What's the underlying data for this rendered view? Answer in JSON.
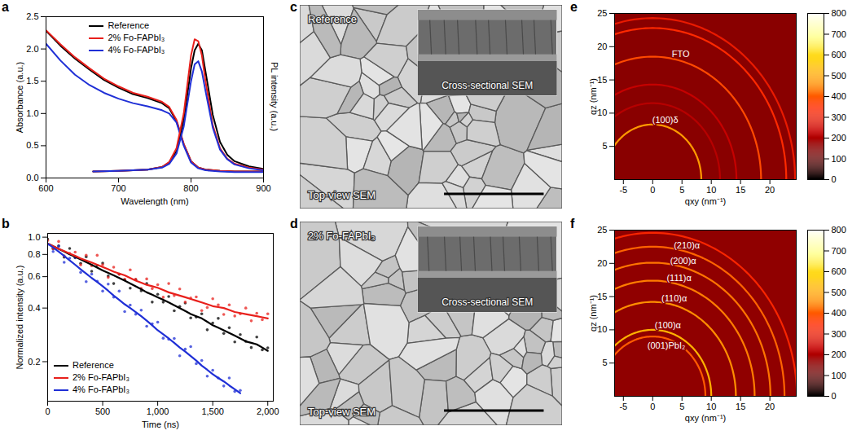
{
  "chart_data": [
    {
      "panel": "a",
      "type": "line",
      "xlabel": "Wavelength (nm)",
      "ylabel": "Absorbance (a.u.)",
      "y2label": "PL intensity (a.u.)",
      "xlim": [
        600,
        900
      ],
      "xticks": [
        600,
        700,
        800,
        900
      ],
      "ylim": [
        0,
        2.5
      ],
      "yticks": [
        {
          "value": 0,
          "label": "0.0"
        },
        {
          "value": 0.5,
          "label": "0.5"
        },
        {
          "value": 1,
          "label": "1.0"
        },
        {
          "value": 1.5,
          "label": "1.5"
        },
        {
          "value": 2,
          "label": "2.0"
        },
        {
          "value": 2.5,
          "label": "2.5"
        }
      ],
      "y2lim": [
        0,
        2.5
      ],
      "y2ticks": [],
      "legend": "top",
      "series": [
        {
          "name": "Reference",
          "color": "#000000",
          "x": [
            600,
            620,
            640,
            660,
            680,
            700,
            720,
            740,
            760,
            770,
            780,
            790,
            800,
            810,
            820,
            840,
            860,
            880,
            900
          ],
          "values": [
            2.28,
            2.05,
            1.85,
            1.68,
            1.52,
            1.4,
            1.3,
            1.24,
            1.16,
            1.08,
            0.88,
            0.52,
            0.26,
            0.16,
            0.13,
            0.11,
            0.1,
            0.1,
            0.1
          ]
        },
        {
          "name": "2% Fo-FAPbI₃",
          "color": "#e8201c",
          "x": [
            600,
            620,
            640,
            660,
            680,
            700,
            720,
            740,
            760,
            770,
            780,
            790,
            800,
            810,
            820,
            840,
            860,
            880,
            900
          ],
          "values": [
            2.29,
            2.07,
            1.87,
            1.7,
            1.54,
            1.42,
            1.32,
            1.26,
            1.18,
            1.1,
            0.9,
            0.53,
            0.26,
            0.16,
            0.13,
            0.11,
            0.1,
            0.1,
            0.1
          ]
        },
        {
          "name": "4% Fo-FAPbI₃",
          "color": "#1f2fd6",
          "x": [
            600,
            620,
            640,
            660,
            680,
            700,
            720,
            740,
            760,
            770,
            780,
            790,
            800,
            810,
            820,
            840,
            860,
            880,
            900
          ],
          "values": [
            2.08,
            1.82,
            1.6,
            1.44,
            1.32,
            1.23,
            1.16,
            1.11,
            1.05,
            1.0,
            0.86,
            0.5,
            0.24,
            0.15,
            0.12,
            0.1,
            0.09,
            0.09,
            0.09
          ]
        },
        {
          "name": "Reference",
          "color": "#000000",
          "axis": "y2",
          "x": [
            665,
            700,
            740,
            760,
            770,
            780,
            790,
            795,
            800,
            805,
            810,
            815,
            820,
            830,
            840,
            850,
            860,
            880,
            900
          ],
          "values": [
            0.1,
            0.11,
            0.13,
            0.17,
            0.24,
            0.42,
            0.9,
            1.3,
            1.7,
            1.98,
            2.08,
            1.98,
            1.65,
            0.98,
            0.56,
            0.36,
            0.26,
            0.18,
            0.14
          ]
        },
        {
          "name": "2% Fo-FAPbI₃",
          "color": "#e8201c",
          "axis": "y2",
          "x": [
            665,
            700,
            740,
            760,
            770,
            780,
            790,
            795,
            800,
            805,
            810,
            815,
            820,
            830,
            840,
            850,
            860,
            880,
            900
          ],
          "values": [
            0.1,
            0.11,
            0.13,
            0.17,
            0.25,
            0.46,
            1.0,
            1.45,
            1.9,
            2.15,
            2.12,
            1.9,
            1.5,
            0.82,
            0.46,
            0.3,
            0.22,
            0.16,
            0.13
          ]
        },
        {
          "name": "4% Fo-FAPbI₃",
          "color": "#1f2fd6",
          "axis": "y2",
          "x": [
            665,
            700,
            740,
            760,
            770,
            780,
            790,
            795,
            800,
            805,
            810,
            815,
            820,
            830,
            840,
            850,
            860,
            880,
            900
          ],
          "values": [
            0.1,
            0.11,
            0.13,
            0.16,
            0.22,
            0.38,
            0.8,
            1.15,
            1.5,
            1.76,
            1.81,
            1.65,
            1.35,
            0.78,
            0.44,
            0.29,
            0.21,
            0.15,
            0.12
          ]
        }
      ]
    },
    {
      "panel": "b",
      "type": "scatter",
      "xlabel": "Time (ns)",
      "ylabel": "Normalized intensity (a.u.)",
      "xlim": [
        0,
        2050
      ],
      "xticks": [
        0,
        500,
        {
          "value": 1000,
          "label": "1,000"
        },
        {
          "value": 1500,
          "label": "1,500"
        },
        {
          "value": 2000,
          "label": "2,000"
        }
      ],
      "ylim": [
        0.12,
        1.05
      ],
      "yticks": [
        0.2,
        0.4,
        0.6,
        0.8,
        {
          "value": 1,
          "label": "1.0"
        }
      ],
      "log": "y",
      "legend": "bottom-left",
      "series": [
        {
          "name": "Reference",
          "color": "#000000",
          "x": [
            0,
            50,
            100,
            150,
            200,
            250,
            300,
            350,
            400,
            450,
            500,
            550,
            600,
            650,
            700,
            750,
            800,
            850,
            900,
            950,
            1000,
            1050,
            1100,
            1150,
            1200,
            1250,
            1300,
            1350,
            1400,
            1450,
            1500,
            1550,
            1600,
            1650,
            1700,
            1750,
            1800,
            1850,
            1900,
            1950,
            2000
          ],
          "values": [
            0.975,
            0.863,
            0.894,
            0.772,
            0.864,
            0.767,
            0.713,
            0.776,
            0.644,
            0.695,
            0.715,
            0.605,
            0.549,
            0.62,
            0.576,
            0.517,
            0.578,
            0.5,
            0.549,
            0.432,
            0.478,
            0.432,
            0.464,
            0.386,
            0.408,
            0.427,
            0.352,
            0.356,
            0.371,
            0.302,
            0.33,
            0.35,
            0.288,
            0.31,
            0.258,
            0.284,
            0.26,
            0.24,
            0.275,
            0.233,
            0.239
          ],
          "fit": [
            0.92,
            0.89,
            0.86,
            0.83,
            0.8,
            0.775,
            0.75,
            0.725,
            0.7,
            0.675,
            0.65,
            0.63,
            0.61,
            0.59,
            0.57,
            0.55,
            0.53,
            0.51,
            0.49,
            0.475,
            0.46,
            0.445,
            0.43,
            0.415,
            0.4,
            0.385,
            0.37,
            0.36,
            0.35,
            0.335,
            0.32,
            0.31,
            0.3,
            0.29,
            0.28,
            0.27,
            0.26,
            0.255,
            0.25,
            0.24,
            0.23
          ]
        },
        {
          "name": "2% Fo-FAPbI₃",
          "color": "#e8201c",
          "x": [
            0,
            50,
            100,
            150,
            200,
            250,
            300,
            350,
            400,
            450,
            500,
            550,
            600,
            650,
            700,
            750,
            800,
            850,
            900,
            950,
            1000,
            1050,
            1100,
            1150,
            1200,
            1250,
            1300,
            1350,
            1400,
            1450,
            1500,
            1550,
            1600,
            1650,
            1700,
            1750,
            1800,
            1850,
            1900,
            1950,
            2000
          ],
          "values": [
            0.957,
            0.863,
            0.946,
            0.785,
            0.81,
            0.824,
            0.699,
            0.792,
            0.691,
            0.791,
            0.7,
            0.594,
            0.678,
            0.619,
            0.58,
            0.655,
            0.581,
            0.516,
            0.583,
            0.514,
            0.541,
            0.46,
            0.549,
            0.47,
            0.512,
            0.432,
            0.455,
            0.462,
            0.387,
            0.403,
            0.451,
            0.417,
            0.368,
            0.417,
            0.361,
            0.371,
            0.4,
            0.339,
            0.374,
            0.344,
            0.371
          ],
          "fit": [
            0.92,
            0.89,
            0.86,
            0.835,
            0.81,
            0.785,
            0.76,
            0.74,
            0.72,
            0.7,
            0.68,
            0.66,
            0.64,
            0.625,
            0.61,
            0.59,
            0.57,
            0.555,
            0.54,
            0.53,
            0.52,
            0.505,
            0.49,
            0.48,
            0.47,
            0.46,
            0.45,
            0.44,
            0.43,
            0.42,
            0.41,
            0.405,
            0.4,
            0.39,
            0.38,
            0.375,
            0.37,
            0.365,
            0.36,
            0.355,
            0.35
          ]
        },
        {
          "name": "4% Fo-FAPbI₃",
          "color": "#1f2fd6",
          "x": [
            0,
            50,
            100,
            150,
            200,
            250,
            300,
            350,
            400,
            450,
            500,
            550,
            600,
            650,
            700,
            750,
            800,
            850,
            900,
            950,
            1000,
            1050,
            1100,
            1150,
            1200,
            1250,
            1300,
            1350,
            1400,
            1450,
            1500,
            1550,
            1600,
            1650,
            1700,
            1750
          ],
          "values": [
            0.911,
            0.831,
            0.888,
            0.722,
            0.762,
            0.77,
            0.634,
            0.563,
            0.62,
            0.566,
            0.498,
            0.545,
            0.461,
            0.498,
            0.382,
            0.416,
            0.369,
            0.389,
            0.316,
            0.326,
            0.333,
            0.271,
            0.267,
            0.27,
            0.216,
            0.235,
            0.243,
            0.195,
            0.203,
            0.166,
            0.179,
            0.162,
            0.146,
            0.162,
            0.136,
            0.138
          ],
          "fit": [
            0.92,
            0.875,
            0.83,
            0.785,
            0.74,
            0.7,
            0.66,
            0.625,
            0.59,
            0.56,
            0.53,
            0.5,
            0.47,
            0.445,
            0.42,
            0.4,
            0.38,
            0.36,
            0.34,
            0.32,
            0.3,
            0.285,
            0.27,
            0.255,
            0.24,
            0.228,
            0.215,
            0.203,
            0.19,
            0.18,
            0.17,
            0.162,
            0.155,
            0.147,
            0.14,
            0.133
          ]
        }
      ]
    },
    {
      "panel": "c",
      "type": "image",
      "title": "Reference",
      "inset_label": "Cross-sectional SEM",
      "label": "Top-view SEM"
    },
    {
      "panel": "d",
      "type": "image",
      "title": "2% Fo-FAPbI₃",
      "inset_label": "Cross-sectional SEM",
      "label": "Top-view SEM"
    },
    {
      "panel": "e",
      "type": "heatmap",
      "xlabel": "qxy (nm⁻¹)",
      "ylabel": "qz (nm⁻¹)",
      "xlim": [
        -6.5,
        24.5
      ],
      "xticks": [
        -5,
        0,
        5,
        10,
        15,
        20
      ],
      "ylim": [
        0,
        25
      ],
      "yticks": [
        5,
        10,
        15,
        20,
        25
      ],
      "background": 150,
      "rings": [
        {
          "q": 8.3,
          "intensity": 480,
          "label": "(100)δ"
        },
        {
          "q": 11.5,
          "intensity": 210
        },
        {
          "q": 14.3,
          "intensity": 230
        },
        {
          "q": 18.5,
          "intensity": 380,
          "label": "FTO"
        },
        {
          "q": 22.8,
          "intensity": 340
        },
        {
          "q": 24.3,
          "intensity": 300
        }
      ],
      "colorbar": {
        "range": [
          0,
          800
        ],
        "ticks": [
          0,
          100,
          200,
          300,
          400,
          500,
          600,
          700,
          800
        ]
      }
    },
    {
      "panel": "f",
      "type": "heatmap",
      "xlabel": "qxy (nm⁻¹)",
      "ylabel": "qz (nm⁻¹)",
      "xlim": [
        -6.5,
        24.5
      ],
      "xticks": [
        -5,
        0,
        5,
        10,
        15,
        20
      ],
      "ylim": [
        0,
        25
      ],
      "yticks": [
        5,
        10,
        15,
        20,
        25
      ],
      "background": 160,
      "rings": [
        {
          "q": 9.0,
          "intensity": 400,
          "label": "(001)PbI₂"
        },
        {
          "q": 10.0,
          "intensity": 520,
          "label": "(100)α"
        },
        {
          "q": 14.2,
          "intensity": 460,
          "label": "(110)α"
        },
        {
          "q": 17.4,
          "intensity": 440,
          "label": "(111)α"
        },
        {
          "q": 20.1,
          "intensity": 430,
          "label": "(200)α"
        },
        {
          "q": 22.5,
          "intensity": 410,
          "label": "(210)α"
        },
        {
          "q": 24.6,
          "intensity": 330
        }
      ],
      "colorbar": {
        "range": [
          0,
          800
        ],
        "ticks": [
          0,
          100,
          200,
          300,
          400,
          500,
          600,
          700,
          800
        ]
      }
    }
  ]
}
